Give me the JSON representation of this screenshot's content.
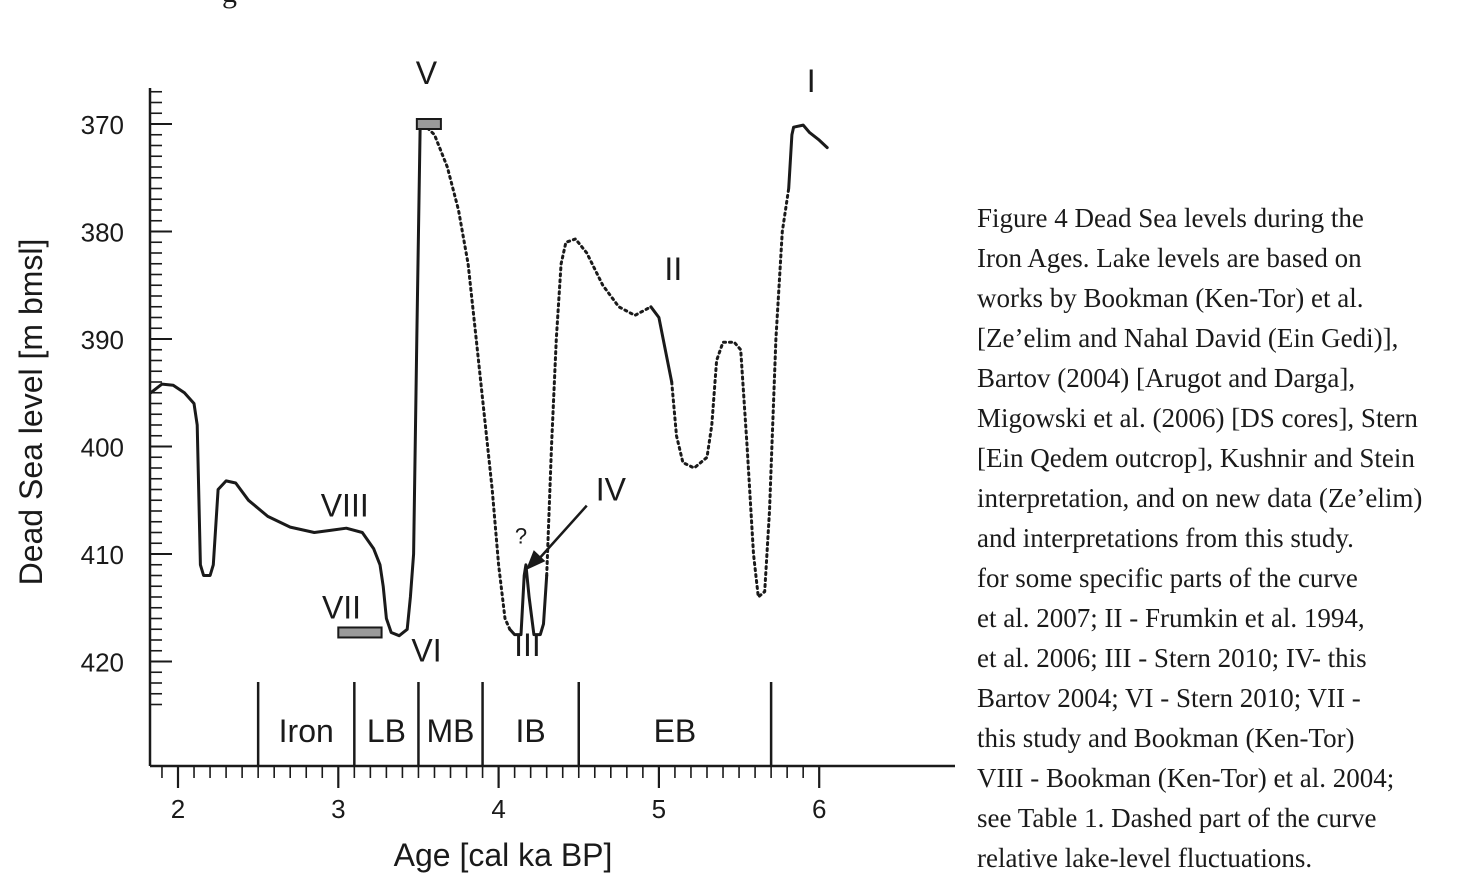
{
  "top_fragment": "g",
  "chart_data": {
    "type": "line",
    "xlabel": "Age [cal ka BP]",
    "ylabel": "Dead Sea level [m bmsl]",
    "xlim": [
      1.83,
      6.05
    ],
    "ylim": [
      365,
      428
    ],
    "y_inverted": true,
    "x_ticks": [
      2,
      3,
      4,
      5,
      6
    ],
    "y_ticks": [
      370,
      380,
      390,
      400,
      410,
      420
    ],
    "solid_segments": [
      {
        "points": [
          [
            1.83,
            395.0
          ],
          [
            1.9,
            394.2
          ],
          [
            1.97,
            394.3
          ],
          [
            2.04,
            395.0
          ],
          [
            2.1,
            396.0
          ],
          [
            2.12,
            398.0
          ],
          [
            2.14,
            411.0
          ],
          [
            2.16,
            412.0
          ],
          [
            2.2,
            412.0
          ],
          [
            2.22,
            411.0
          ],
          [
            2.25,
            404.0
          ],
          [
            2.3,
            403.2
          ],
          [
            2.36,
            403.4
          ],
          [
            2.44,
            405.0
          ],
          [
            2.56,
            406.5
          ],
          [
            2.7,
            407.5
          ],
          [
            2.85,
            408.0
          ],
          [
            2.95,
            407.8
          ],
          [
            3.05,
            407.6
          ],
          [
            3.15,
            408.0
          ],
          [
            3.22,
            409.5
          ],
          [
            3.26,
            411.0
          ],
          [
            3.28,
            413.0
          ],
          [
            3.3,
            416.0
          ],
          [
            3.33,
            417.3
          ],
          [
            3.38,
            417.6
          ],
          [
            3.43,
            417.0
          ],
          [
            3.45,
            414.0
          ],
          [
            3.47,
            410.0
          ],
          [
            3.49,
            390.0
          ],
          [
            3.51,
            370.5
          ],
          [
            3.53,
            370.0
          ]
        ]
      },
      {
        "points": [
          [
            4.07,
            417.0
          ],
          [
            4.1,
            417.5
          ],
          [
            4.14,
            417.5
          ],
          [
            4.16,
            412.0
          ],
          [
            4.17,
            411.0
          ],
          [
            4.19,
            414.0
          ],
          [
            4.22,
            417.5
          ],
          [
            4.26,
            417.5
          ],
          [
            4.28,
            416.5
          ],
          [
            4.3,
            412.0
          ]
        ]
      },
      {
        "points": [
          [
            4.95,
            387.0
          ],
          [
            5.0,
            388.0
          ],
          [
            5.04,
            391.0
          ],
          [
            5.08,
            394.0
          ]
        ]
      },
      {
        "points": [
          [
            5.81,
            376.0
          ],
          [
            5.83,
            371.0
          ],
          [
            5.84,
            370.3
          ],
          [
            5.9,
            370.1
          ],
          [
            5.94,
            370.8
          ],
          [
            6.0,
            371.5
          ],
          [
            6.05,
            372.2
          ]
        ]
      }
    ],
    "dashed_segments": [
      {
        "points": [
          [
            3.53,
            370.0
          ],
          [
            3.6,
            371.0
          ],
          [
            3.68,
            374.0
          ],
          [
            3.75,
            378.0
          ],
          [
            3.81,
            383.0
          ],
          [
            3.86,
            390.0
          ],
          [
            3.91,
            397.0
          ],
          [
            3.96,
            404.0
          ],
          [
            4.0,
            411.0
          ],
          [
            4.04,
            416.0
          ],
          [
            4.07,
            417.0
          ]
        ]
      },
      {
        "points": [
          [
            4.3,
            412.0
          ],
          [
            4.33,
            400.0
          ],
          [
            4.36,
            390.0
          ],
          [
            4.39,
            383.0
          ],
          [
            4.42,
            381.0
          ],
          [
            4.48,
            380.7
          ],
          [
            4.55,
            382.0
          ],
          [
            4.65,
            385.0
          ],
          [
            4.75,
            387.0
          ],
          [
            4.85,
            387.8
          ],
          [
            4.95,
            387.0
          ]
        ]
      },
      {
        "points": [
          [
            5.08,
            394.0
          ],
          [
            5.11,
            399.0
          ],
          [
            5.15,
            401.5
          ],
          [
            5.22,
            402.0
          ],
          [
            5.3,
            401.0
          ],
          [
            5.33,
            398.0
          ],
          [
            5.36,
            392.0
          ],
          [
            5.4,
            390.3
          ],
          [
            5.47,
            390.3
          ],
          [
            5.51,
            391.0
          ],
          [
            5.55,
            400.0
          ],
          [
            5.59,
            410.0
          ],
          [
            5.62,
            414.0
          ],
          [
            5.66,
            413.5
          ],
          [
            5.69,
            406.0
          ],
          [
            5.73,
            390.0
          ],
          [
            5.77,
            380.0
          ],
          [
            5.81,
            376.0
          ]
        ]
      }
    ],
    "bars": [
      {
        "label": "VII",
        "x_start": 3.0,
        "x_end": 3.27,
        "y": 417.3
      },
      {
        "label": "V",
        "x_start": 3.49,
        "x_end": 3.64,
        "y": 370.0
      }
    ],
    "markers": [
      {
        "label": "I",
        "x": 5.95,
        "y": 367.0
      },
      {
        "label": "II",
        "x": 5.09,
        "y": 384.5
      },
      {
        "label": "III",
        "x": 4.18,
        "y": 419.5
      },
      {
        "label": "IV",
        "x": 4.7,
        "y": 405.0
      },
      {
        "label": "V",
        "x": 3.55,
        "y": 366.3
      },
      {
        "label": "VI",
        "x": 3.55,
        "y": 420.0
      },
      {
        "label": "VII",
        "x": 3.02,
        "y": 416.0
      },
      {
        "label": "VIII",
        "x": 3.04,
        "y": 406.5
      },
      {
        "label": "?",
        "x": 4.14,
        "y": 409.0
      }
    ],
    "arrow": {
      "label": "IV",
      "from": [
        4.55,
        405.5
      ],
      "to": [
        4.17,
        411.5
      ]
    },
    "periods": [
      {
        "label": "Iron",
        "x_start": 2.5,
        "x_end": 3.1
      },
      {
        "label": "LB",
        "x_start": 3.1,
        "x_end": 3.5
      },
      {
        "label": "MB",
        "x_start": 3.5,
        "x_end": 3.9
      },
      {
        "label": "IB",
        "x_start": 3.9,
        "x_end": 4.5
      },
      {
        "label": "EB",
        "x_start": 4.5,
        "x_end": 5.7
      }
    ]
  },
  "caption": {
    "lines": [
      "Figure 4  Dead Sea levels during the",
      "Iron Ages. Lake levels are based on",
      "works by Bookman (Ken-Tor) et al.",
      "[Ze’elim and Nahal David (Ein Gedi)],",
      "Bartov (2004) [Arugot and Darga],",
      "Migowski et al. (2006) [DS cores], Stern",
      "[Ein Qedem outcrop], Kushnir and Stein",
      "interpretation, and on new data (Ze’elim)",
      "and interpretations from this study.",
      "for some specific parts of the curve",
      "et al. 2007; II - Frumkin et al. 1994,",
      "et al. 2006; III - Stern 2010; IV- this",
      "Bartov 2004; VI - Stern 2010; VII -",
      "this study and Bookman (Ken-Tor)",
      "VIII - Bookman (Ken-Tor) et al. 2004;",
      "see Table 1. Dashed part of the curve",
      "relative lake-level fluctuations."
    ]
  }
}
